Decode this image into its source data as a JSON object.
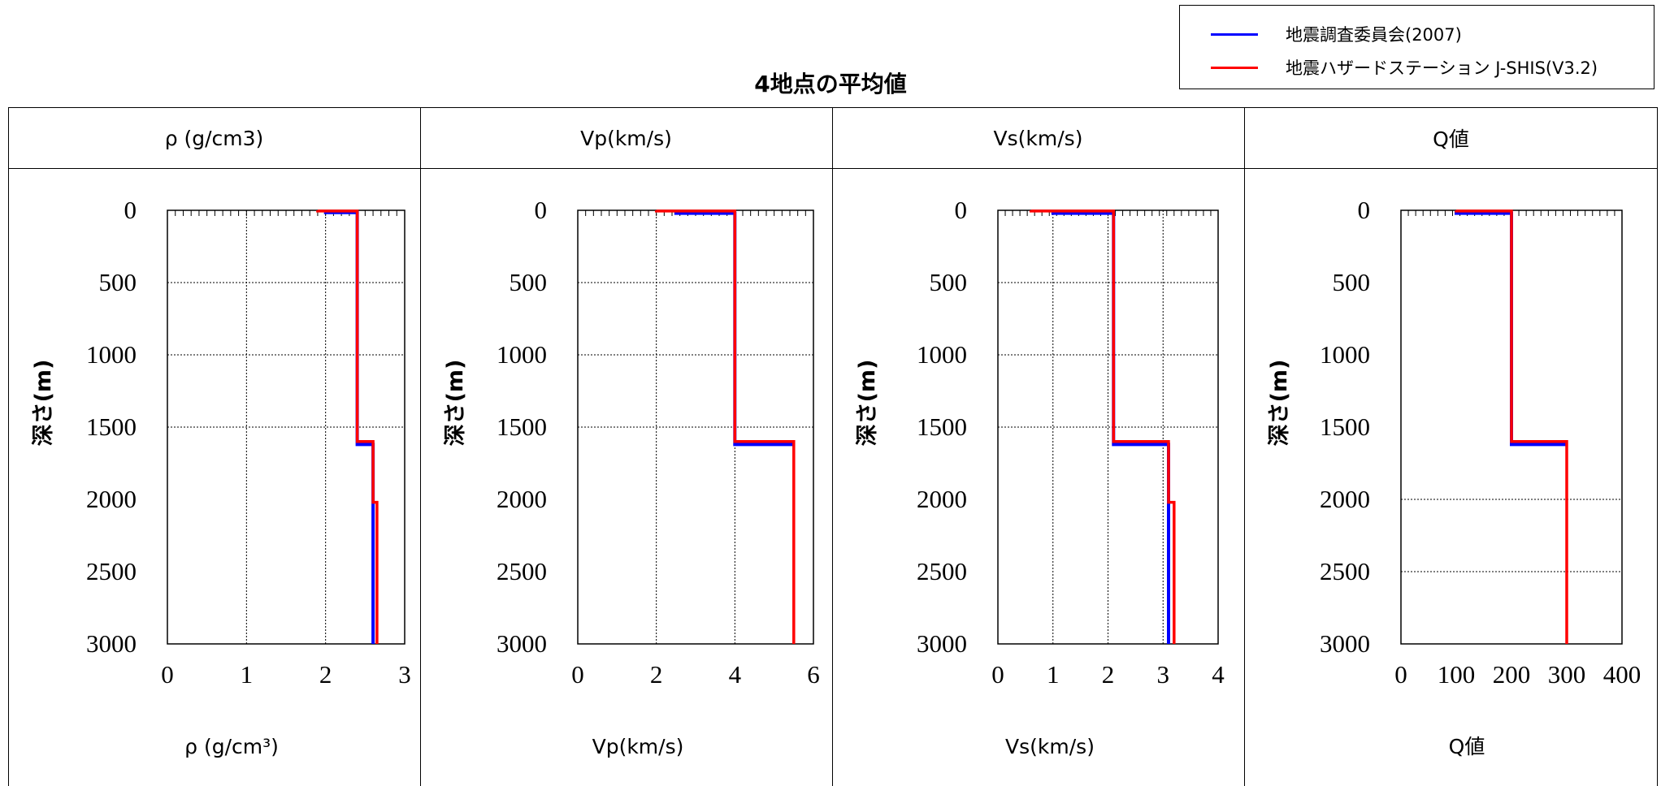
{
  "title": "4地点の平均値",
  "legend": [
    {
      "label": "地震調査委員会(2007)",
      "color": "#0000ff"
    },
    {
      "label": "地震ハザードステーション J-SHIS(V3.2)",
      "color": "#ff0000"
    }
  ],
  "column_headers": [
    "ρ (g/cm3)",
    "Vp(km/s)",
    "Vs(km/s)",
    "Q値"
  ],
  "chart_data": [
    {
      "type": "line",
      "xlabel": "ρ (g/cm³)",
      "ylabel": "深さ(m)",
      "xlim": [
        0,
        3
      ],
      "ylim": [
        0,
        3000
      ],
      "y_inverted": true,
      "xticks": [
        0,
        1,
        2,
        3
      ],
      "yticks": [
        0,
        500,
        1000,
        1500,
        2000,
        2500,
        3000
      ],
      "x_grid": [
        1,
        2
      ],
      "y_grid": [
        500,
        1000,
        1500
      ],
      "series": [
        {
          "name": "地震調査委員会(2007)",
          "color": "#0000ff",
          "points": [
            [
              2.0,
              0
            ],
            [
              2.0,
              15
            ],
            [
              2.4,
              15
            ],
            [
              2.4,
              1620
            ],
            [
              2.6,
              1620
            ],
            [
              2.6,
              3000
            ]
          ]
        },
        {
          "name": "地震ハザードステーション J-SHIS(V3.2)",
          "color": "#ff0000",
          "points": [
            [
              1.9,
              0
            ],
            [
              1.9,
              5
            ],
            [
              2.4,
              5
            ],
            [
              2.4,
              1600
            ],
            [
              2.6,
              1600
            ],
            [
              2.6,
              2020
            ],
            [
              2.65,
              2020
            ],
            [
              2.65,
              3000
            ]
          ]
        }
      ]
    },
    {
      "type": "line",
      "xlabel": "Vp(km/s)",
      "ylabel": "深さ(m)",
      "xlim": [
        0,
        6
      ],
      "ylim": [
        0,
        3000
      ],
      "y_inverted": true,
      "xticks": [
        0,
        2,
        4,
        6
      ],
      "yticks": [
        0,
        500,
        1000,
        1500,
        2000,
        2500,
        3000
      ],
      "x_grid": [
        2,
        4
      ],
      "y_grid": [
        500,
        1000,
        1500
      ],
      "series": [
        {
          "name": "地震調査委員会(2007)",
          "color": "#0000ff",
          "points": [
            [
              2.5,
              0
            ],
            [
              2.5,
              20
            ],
            [
              4.0,
              20
            ],
            [
              4.0,
              1620
            ],
            [
              5.5,
              1620
            ],
            [
              5.5,
              1620
            ]
          ]
        },
        {
          "name": "地震ハザードステーション J-SHIS(V3.2)",
          "color": "#ff0000",
          "points": [
            [
              2.0,
              0
            ],
            [
              2.0,
              5
            ],
            [
              4.0,
              5
            ],
            [
              4.0,
              1600
            ],
            [
              5.5,
              1600
            ],
            [
              5.5,
              3000
            ]
          ]
        }
      ]
    },
    {
      "type": "line",
      "xlabel": "Vs(km/s)",
      "ylabel": "深さ(m)",
      "xlim": [
        0,
        4
      ],
      "ylim": [
        0,
        3000
      ],
      "y_inverted": true,
      "xticks": [
        0,
        1,
        2,
        3,
        4
      ],
      "yticks": [
        0,
        500,
        1000,
        1500,
        2000,
        2500,
        3000
      ],
      "x_grid": [
        1,
        2,
        3
      ],
      "y_grid": [
        500,
        1000,
        1500
      ],
      "series": [
        {
          "name": "地震調査委員会(2007)",
          "color": "#0000ff",
          "points": [
            [
              1.0,
              0
            ],
            [
              1.0,
              20
            ],
            [
              2.1,
              20
            ],
            [
              2.1,
              1620
            ],
            [
              3.1,
              1620
            ],
            [
              3.1,
              3000
            ]
          ]
        },
        {
          "name": "地震ハザードステーション J-SHIS(V3.2)",
          "color": "#ff0000",
          "points": [
            [
              0.6,
              0
            ],
            [
              0.6,
              5
            ],
            [
              2.1,
              5
            ],
            [
              2.1,
              1600
            ],
            [
              3.1,
              1600
            ],
            [
              3.1,
              2020
            ],
            [
              3.2,
              2020
            ],
            [
              3.2,
              3000
            ]
          ]
        }
      ]
    },
    {
      "type": "line",
      "xlabel": "Q値",
      "ylabel": "深さ(m)",
      "xlim": [
        0,
        400
      ],
      "ylim": [
        0,
        3000
      ],
      "y_inverted": true,
      "xticks": [
        0,
        100,
        200,
        300,
        400
      ],
      "yticks": [
        0,
        500,
        1000,
        1500,
        2000,
        2500,
        3000
      ],
      "x_grid": [],
      "y_grid": [
        2000,
        2500
      ],
      "series": [
        {
          "name": "地震調査委員会(2007)",
          "color": "#0000ff",
          "points": [
            [
              100,
              0
            ],
            [
              100,
              20
            ],
            [
              200,
              20
            ],
            [
              200,
              1620
            ],
            [
              300,
              1620
            ],
            [
              300,
              1620
            ]
          ]
        },
        {
          "name": "地震ハザードステーション J-SHIS(V3.2)",
          "color": "#ff0000",
          "points": [
            [
              100,
              0
            ],
            [
              100,
              5
            ],
            [
              200,
              5
            ],
            [
              200,
              1600
            ],
            [
              300,
              1600
            ],
            [
              300,
              3000
            ]
          ]
        }
      ]
    }
  ]
}
